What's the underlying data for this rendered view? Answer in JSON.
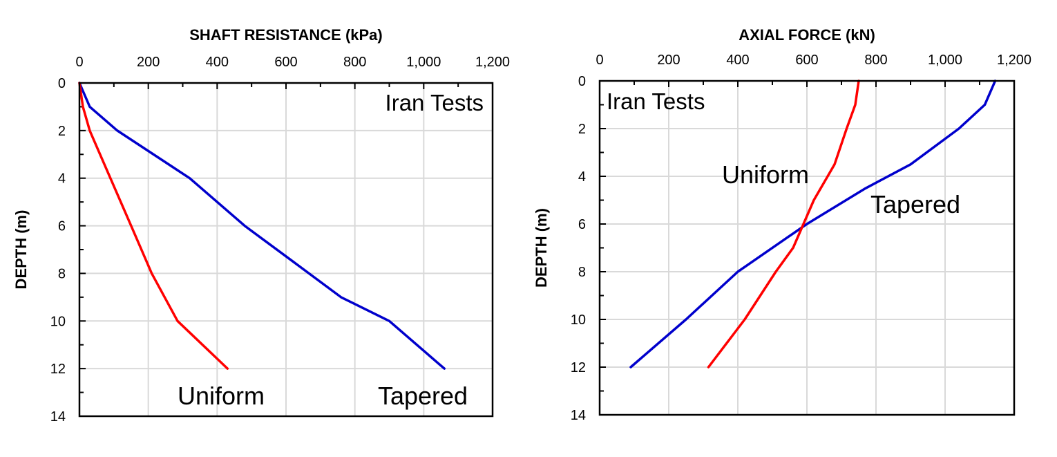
{
  "chart_data": [
    {
      "type": "line",
      "title": "",
      "xlabel": "SHAFT RESISTANCE (kPa)",
      "ylabel": "DEPTH (m)",
      "xlim": [
        0,
        1200
      ],
      "ylim": [
        0,
        14
      ],
      "y_inverted": true,
      "x_axis_position": "top",
      "grid": true,
      "x_ticks": [
        "0",
        "200",
        "400",
        "600",
        "800",
        "1,000",
        "1,200"
      ],
      "y_ticks": [
        "0",
        "2",
        "4",
        "6",
        "8",
        "10",
        "12",
        "14"
      ],
      "annotations": {
        "tests": "Iran Tests",
        "uniform": "Uniform",
        "tapered": "Tapered"
      },
      "series": [
        {
          "name": "Tapered",
          "color": "#0000cc",
          "points": [
            [
              0,
              0
            ],
            [
              30,
              1
            ],
            [
              110,
              2
            ],
            [
              320,
              4
            ],
            [
              480,
              6
            ],
            [
              620,
              7.5
            ],
            [
              760,
              9
            ],
            [
              900,
              10
            ],
            [
              1060,
              12
            ]
          ]
        },
        {
          "name": "Uniform",
          "color": "#ff0000",
          "points": [
            [
              0,
              0
            ],
            [
              10,
              1
            ],
            [
              30,
              2
            ],
            [
              90,
              4
            ],
            [
              150,
              6
            ],
            [
              210,
              8
            ],
            [
              285,
              10
            ],
            [
              430,
              12
            ]
          ]
        }
      ]
    },
    {
      "type": "line",
      "title": "",
      "xlabel": "AXIAL FORCE (kN)",
      "ylabel": "DEPTH (m)",
      "xlim": [
        0,
        1200
      ],
      "ylim": [
        0,
        14
      ],
      "y_inverted": true,
      "x_axis_position": "top",
      "grid": true,
      "x_ticks": [
        "0",
        "200",
        "400",
        "600",
        "800",
        "1,000",
        "1,200"
      ],
      "y_ticks": [
        "0",
        "2",
        "4",
        "6",
        "8",
        "10",
        "12",
        "14"
      ],
      "annotations": {
        "tests": "Iran Tests",
        "uniform": "Uniform",
        "tapered": "Tapered"
      },
      "series": [
        {
          "name": "Tapered",
          "color": "#0000cc",
          "points": [
            [
              1145,
              0
            ],
            [
              1115,
              1
            ],
            [
              1040,
              2
            ],
            [
              900,
              3.5
            ],
            [
              770,
              4.5
            ],
            [
              600,
              6
            ],
            [
              400,
              8
            ],
            [
              250,
              10
            ],
            [
              90,
              12
            ]
          ]
        },
        {
          "name": "Uniform",
          "color": "#ff0000",
          "points": [
            [
              750,
              0
            ],
            [
              740,
              1
            ],
            [
              715,
              2
            ],
            [
              680,
              3.5
            ],
            [
              620,
              5
            ],
            [
              560,
              7
            ],
            [
              510,
              8
            ],
            [
              420,
              10
            ],
            [
              315,
              12
            ]
          ]
        }
      ]
    }
  ]
}
